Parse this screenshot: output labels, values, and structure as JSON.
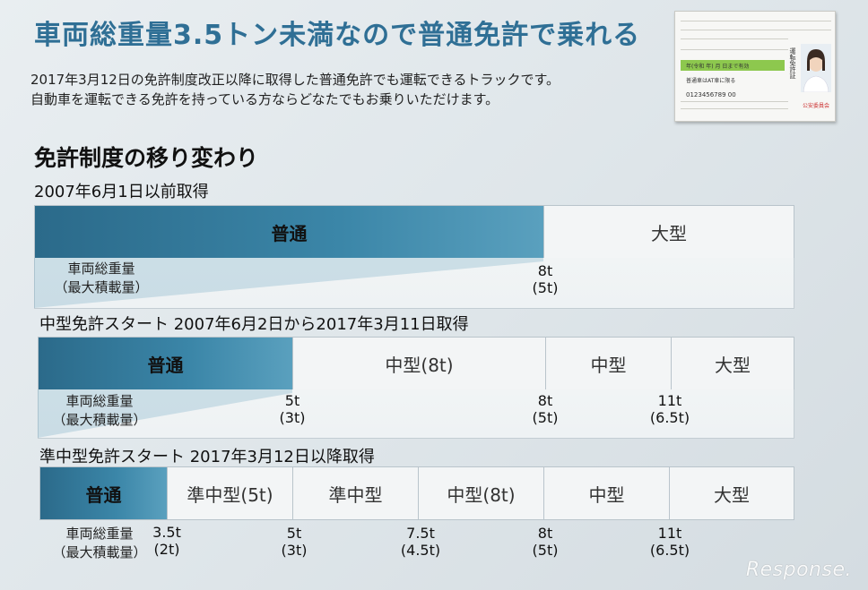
{
  "title": "車両総重量3.5トン未満なので普通免許で乗れる",
  "description": [
    "2017年3月12日の免許制度改正以降に取得した普通免許でも運転できるトラックです。",
    "自動車を運転できる免許を持っている方ならどなたでもお乗りいただけます。"
  ],
  "section_title": "免許制度の移り変わり",
  "axis_label": [
    "車両総重量",
    "（最大積載量）"
  ],
  "eras": [
    {
      "heading": "2007年6月1日以前取得",
      "segments": [
        {
          "label": "普通",
          "filled": true
        },
        {
          "label": "大型",
          "filled": false
        }
      ],
      "values": [
        {
          "top": "8t",
          "bottom": "(5t)"
        }
      ]
    },
    {
      "heading": "中型免許スタート 2007年6月2日から2017年3月11日取得",
      "segments": [
        {
          "label": "普通",
          "filled": true
        },
        {
          "label": "中型(8t)",
          "filled": false
        },
        {
          "label": "中型",
          "filled": false
        },
        {
          "label": "大型",
          "filled": false
        }
      ],
      "values": [
        {
          "top": "5t",
          "bottom": "(3t)"
        },
        {
          "top": "8t",
          "bottom": "(5t)"
        },
        {
          "top": "11t",
          "bottom": "(6.5t)"
        }
      ]
    },
    {
      "heading": "準中型免許スタート 2017年3月12日以降取得",
      "segments": [
        {
          "label": "普通",
          "filled": true
        },
        {
          "label": "準中型(5t)",
          "filled": false
        },
        {
          "label": "準中型",
          "filled": false
        },
        {
          "label": "中型(8t)",
          "filled": false
        },
        {
          "label": "中型",
          "filled": false
        },
        {
          "label": "大型",
          "filled": false
        }
      ],
      "values": [
        {
          "top": "3.5t",
          "bottom": "(2t)",
          "highlight": true
        },
        {
          "top": "5t",
          "bottom": "(3t)"
        },
        {
          "top": "7.5t",
          "bottom": "(4.5t)"
        },
        {
          "top": "8t",
          "bottom": "(5t)"
        },
        {
          "top": "11t",
          "bottom": "(6.5t)"
        }
      ]
    }
  ],
  "license_card": {
    "number": "0123456789 00",
    "condition": "普通車はAT車に限る",
    "vertical": "運転免許証",
    "issuer": "公安委員会"
  },
  "watermark": "Response.",
  "colors": {
    "title": "#2f6f95",
    "fill": "#2b6a8a",
    "highlight": "#d31f1f"
  }
}
